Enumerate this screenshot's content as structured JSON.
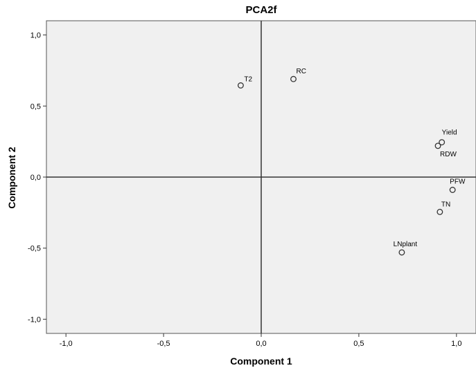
{
  "chart_data": {
    "type": "scatter",
    "title": "PCA2f",
    "xlabel": "Component 1",
    "ylabel": "Component 2",
    "xlim": [
      -1.1,
      1.1
    ],
    "ylim": [
      -1.1,
      1.1
    ],
    "xticks": [
      -1.0,
      -0.5,
      0.0,
      0.5,
      1.0
    ],
    "yticks": [
      -1.0,
      -0.5,
      0.0,
      0.5,
      1.0
    ],
    "xtick_labels": [
      "-1,0",
      "-0,5",
      "0,0",
      "0,5",
      "1,0"
    ],
    "ytick_labels": [
      "-1,0",
      "-0,5",
      "0,0",
      "0,5",
      "1,0"
    ],
    "grid": false,
    "reference_lines": {
      "x": 0,
      "y": 0
    },
    "plot_background": "#f0f0f0",
    "marker_color": "#333333",
    "points": [
      {
        "label": "T2",
        "x": -0.105,
        "y": 0.645
      },
      {
        "label": "RC",
        "x": 0.165,
        "y": 0.69
      },
      {
        "label": "Yield",
        "x": 0.925,
        "y": 0.245
      },
      {
        "label": "RDW",
        "x": 0.905,
        "y": 0.22
      },
      {
        "label": "PFW",
        "x": 0.98,
        "y": -0.09
      },
      {
        "label": "TN",
        "x": 0.915,
        "y": -0.245
      },
      {
        "label": "LNplant",
        "x": 0.72,
        "y": -0.53
      }
    ]
  }
}
